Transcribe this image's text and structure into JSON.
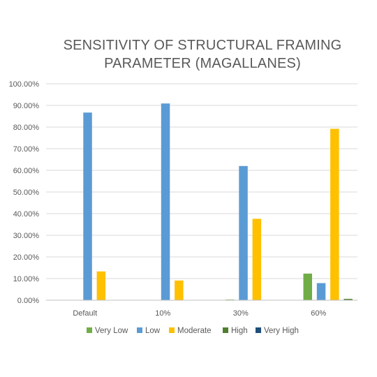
{
  "chart_data": {
    "type": "bar",
    "title_lines": [
      "SENSITIVITY OF STRUCTURAL FRAMING",
      "PARAMETER (MAGALLANES)"
    ],
    "categories": [
      "Default",
      "10%",
      "30%",
      "60%"
    ],
    "series": [
      {
        "name": "Very Low",
        "color": "#70ad47",
        "values": [
          0.0,
          0.0,
          0.3,
          12.3
        ]
      },
      {
        "name": "Low",
        "color": "#5b9bd5",
        "values": [
          86.7,
          90.9,
          62.0,
          7.9
        ]
      },
      {
        "name": "Moderate",
        "color": "#ffc000",
        "values": [
          13.3,
          9.1,
          37.6,
          79.2
        ]
      },
      {
        "name": "High",
        "color": "#4f7f2e",
        "values": [
          0.0,
          0.0,
          0.0,
          0.6
        ]
      },
      {
        "name": "Very High",
        "color": "#1f4e79",
        "values": [
          0.0,
          0.0,
          0.0,
          0.0
        ]
      }
    ],
    "yticks": [
      "0.00%",
      "10.00%",
      "20.00%",
      "30.00%",
      "40.00%",
      "50.00%",
      "60.00%",
      "70.00%",
      "80.00%",
      "90.00%",
      "100.00%"
    ],
    "ylim": [
      0,
      100
    ],
    "grid": true,
    "legend_position": "bottom"
  }
}
